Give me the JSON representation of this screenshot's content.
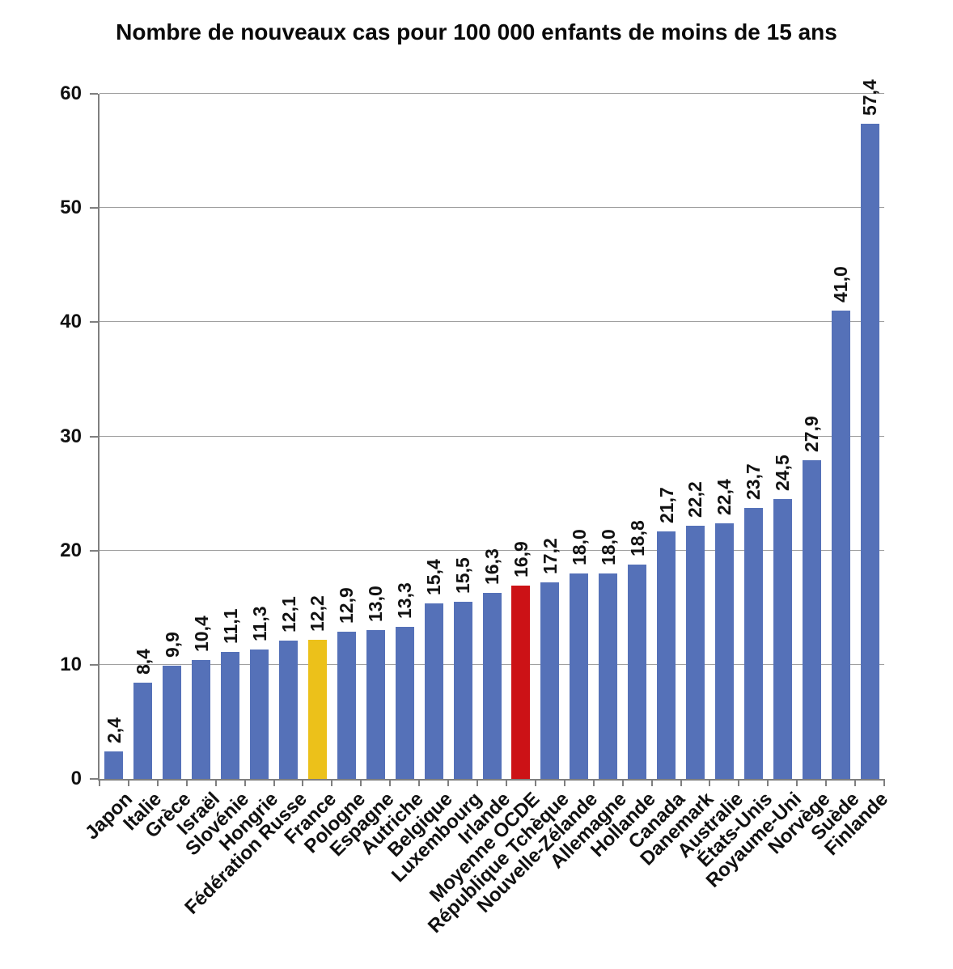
{
  "chart_data": {
    "type": "bar",
    "title": "Nombre de nouveaux cas pour 100 000 enfants de moins de 15 ans",
    "xlabel": "",
    "ylabel": "",
    "ylim": [
      0,
      60
    ],
    "y_ticks": [
      0,
      10,
      20,
      30,
      40,
      50,
      60
    ],
    "grid": true,
    "legend": false,
    "decimal_separator": ",",
    "categories": [
      "Japon",
      "Italie",
      "Grèce",
      "Israël",
      "Slovénie",
      "Hongrie",
      "Fédération Russe",
      "France",
      "Pologne",
      "Espagne",
      "Autriche",
      "Belgique",
      "Luxembourg",
      "Irlande",
      "Moyenne OCDE",
      "République Tchèque",
      "Nouvelle-Zélande",
      "Allemagne",
      "Hollande",
      "Canada",
      "Danemark",
      "Australie",
      "États-Unis",
      "Royaume-Uni",
      "Norvège",
      "Suède",
      "Finlande"
    ],
    "values": [
      2.4,
      8.4,
      9.9,
      10.4,
      11.1,
      11.3,
      12.1,
      12.2,
      12.9,
      13.0,
      13.3,
      15.4,
      15.5,
      16.3,
      16.9,
      17.2,
      18.0,
      18.0,
      18.8,
      21.7,
      22.2,
      22.4,
      23.7,
      24.5,
      27.9,
      41.0,
      57.4
    ],
    "value_labels": [
      "2,4",
      "8,4",
      "9,9",
      "10,4",
      "11,1",
      "11,3",
      "12,1",
      "12,2",
      "12,9",
      "13,0",
      "13,3",
      "15,4",
      "15,5",
      "16,3",
      "16,9",
      "17,2",
      "18,0",
      "18,0",
      "18,8",
      "21,7",
      "22,2",
      "22,4",
      "23,7",
      "24,5",
      "27,9",
      "41,0",
      "57,4"
    ],
    "highlights": {
      "France": "#ECC11A",
      "Moyenne OCDE": "#CC1216"
    }
  },
  "colors": {
    "bar_default": "#5571B8",
    "gridline": "#A0A0A0",
    "axis": "#7F7F7F",
    "text": "#111111"
  }
}
